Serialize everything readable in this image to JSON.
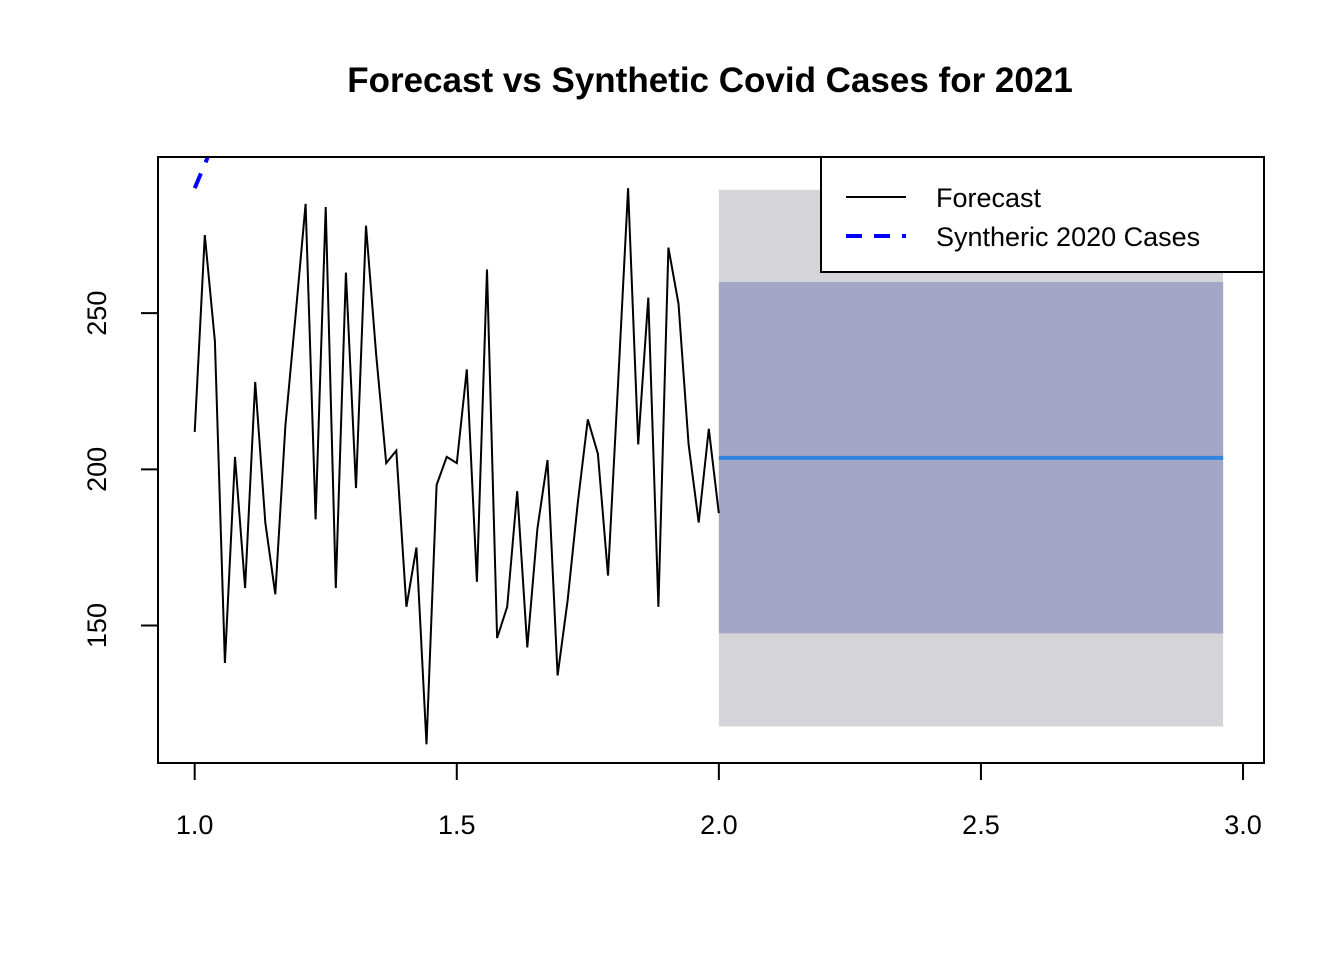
{
  "chart_data": {
    "type": "line",
    "title": "Forecast vs Synthetic Covid Cases for 2021",
    "xlabel": "",
    "ylabel": "",
    "xlim": [
      0.93,
      3.04
    ],
    "ylim": [
      106,
      300
    ],
    "x_ticks": [
      "1.0",
      "1.5",
      "2.0",
      "2.5",
      "3.0"
    ],
    "x_tick_values": [
      1.0,
      1.5,
      2.0,
      2.5,
      3.0
    ],
    "y_ticks": [
      "150",
      "200",
      "250"
    ],
    "y_tick_values": [
      150,
      200,
      250
    ],
    "grid": false,
    "legend_position": "top-right",
    "history": {
      "x_start": 1.0,
      "x_step": 0.01923,
      "values": [
        212,
        275,
        241,
        138,
        204,
        162,
        228,
        183,
        160,
        214,
        249,
        285,
        184,
        284,
        162,
        263,
        194,
        278,
        237,
        202,
        206,
        156,
        175,
        112,
        195,
        204,
        202,
        232,
        164,
        264,
        146,
        156,
        193,
        143,
        181,
        203,
        134,
        158,
        189,
        216,
        205,
        166,
        227,
        290,
        208,
        255,
        156,
        271,
        253,
        208,
        183,
        213,
        186
      ]
    },
    "forecast": {
      "x_start": 2.0,
      "x_end": 2.962,
      "mean": 203.7,
      "lower80": 147.5,
      "upper80": 260,
      "lower95": 117.7,
      "upper95": 289.5
    },
    "synthetic_2020": {
      "x": [
        1.0,
        1.04
      ],
      "values": [
        290,
        306
      ]
    },
    "series": [
      {
        "name": "Forecast",
        "style": "solid",
        "color": "#000000"
      },
      {
        "name": "Syntheric 2020 Cases",
        "style": "dashed",
        "color": "#0000ff"
      }
    ],
    "colors": {
      "band95": "#d4d4d9",
      "band80": "#a3a6c4",
      "forecast_mean": "#2f86e0",
      "history_line": "#000000",
      "synthetic_line": "#0000ff"
    }
  }
}
